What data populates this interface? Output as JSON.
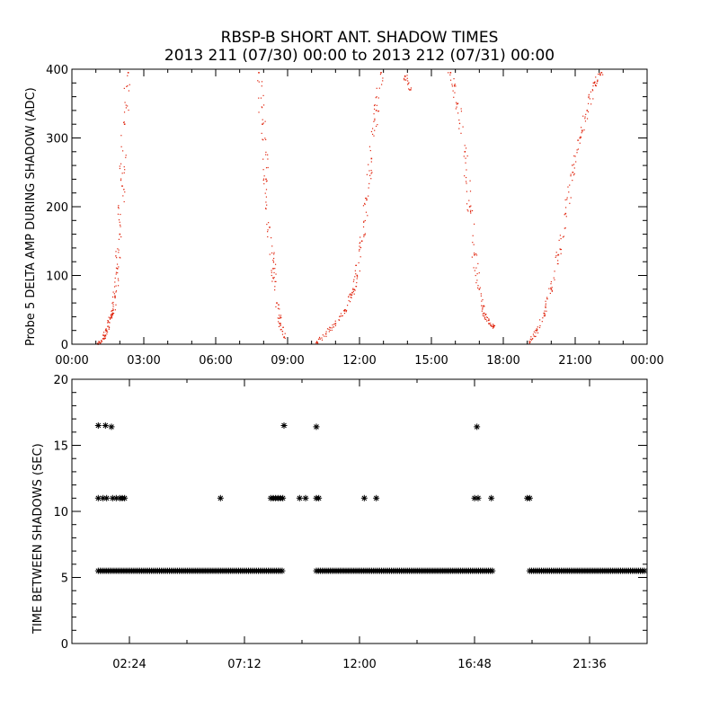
{
  "title_line1": "RBSP-B SHORT ANT. SHADOW TIMES",
  "title_line2": "2013 211 (07/30) 00:00 to 2013 212 (07/31) 00:00",
  "colors": {
    "amp_points": "#e0260f",
    "time_points": "#000000",
    "axes": "#000000"
  },
  "chart_data": [
    {
      "type": "scatter",
      "ylabel": "Probe 5 DELTA AMP DURING SHADOW (ADC)",
      "xlabel": "",
      "xlim": [
        0,
        24
      ],
      "ylim": [
        0,
        400
      ],
      "x_tick_labels": [
        "00:00",
        "03:00",
        "06:00",
        "09:00",
        "12:00",
        "15:00",
        "18:00",
        "21:00",
        "00:00"
      ],
      "y_tick_labels": [
        "0",
        "100",
        "200",
        "300",
        "400"
      ],
      "point_color": "#e0260f",
      "series": [
        {
          "x": [
            1.1,
            1.3,
            1.45,
            1.6,
            1.7,
            1.8,
            1.9,
            2.0,
            2.1,
            2.2,
            2.35
          ],
          "y": [
            0,
            8,
            20,
            38,
            45,
            70,
            110,
            160,
            230,
            320,
            395
          ]
        },
        {
          "x": [
            7.8,
            7.95,
            8.1,
            8.25,
            8.4,
            8.55,
            8.7,
            8.85
          ],
          "y": [
            395,
            320,
            240,
            170,
            110,
            60,
            30,
            10
          ]
        },
        {
          "x": [
            10.2,
            10.6,
            11.0,
            11.4,
            11.7,
            11.9,
            12.1,
            12.3,
            12.5,
            12.7,
            12.9
          ],
          "y": [
            2,
            15,
            30,
            50,
            75,
            100,
            150,
            210,
            270,
            340,
            395
          ]
        },
        {
          "x": [
            13.9,
            14.1
          ],
          "y": [
            390,
            370
          ]
        },
        {
          "x": [
            15.8,
            16.1,
            16.4,
            16.6,
            16.8,
            17.0,
            17.2,
            17.4,
            17.6
          ],
          "y": [
            395,
            350,
            280,
            200,
            130,
            80,
            45,
            30,
            25
          ]
        },
        {
          "x": [
            19.1,
            19.4,
            19.7,
            20.0,
            20.3,
            20.6,
            20.9,
            21.2,
            21.5,
            21.8,
            22.1
          ],
          "y": [
            2,
            20,
            45,
            80,
            130,
            190,
            250,
            300,
            340,
            380,
            395
          ]
        }
      ]
    },
    {
      "type": "scatter",
      "ylabel": "TIME BETWEEN SHADOWS (SEC)",
      "xlabel": "",
      "xlim": [
        0,
        24
      ],
      "ylim": [
        0,
        20
      ],
      "x_tick_labels": [
        "02:24",
        "07:12",
        "12:00",
        "16:48",
        "21:36"
      ],
      "y_tick_labels": [
        "0",
        "5",
        "10",
        "15",
        "20"
      ],
      "marker": "*",
      "series": [
        {
          "name": "",
          "x_ranges": [
            [
              1.1,
              8.85
            ],
            [
              10.2,
              17.6
            ],
            [
              19.1,
              24.0
            ]
          ],
          "y": 5.5
        },
        {
          "name": "",
          "x": [
            1.1,
            1.3,
            1.45,
            1.7,
            1.85,
            2.0,
            2.1,
            2.2,
            6.2,
            8.3,
            8.4,
            8.5,
            8.6,
            8.7,
            8.8,
            9.5,
            9.75,
            10.2,
            10.3,
            12.2,
            12.7,
            16.8,
            16.95,
            17.5,
            19.0,
            19.1
          ],
          "y": [
            11,
            11,
            11,
            11,
            11,
            11,
            11,
            11,
            11,
            11,
            11,
            11,
            11,
            11,
            11,
            11,
            11,
            11,
            11,
            11,
            11,
            11,
            11,
            11,
            11,
            11
          ]
        },
        {
          "name": "",
          "x": [
            1.1,
            1.4,
            1.65,
            8.85,
            10.2,
            16.9
          ],
          "y": [
            16.5,
            16.5,
            16.4,
            16.5,
            16.4,
            16.4
          ]
        }
      ]
    }
  ]
}
